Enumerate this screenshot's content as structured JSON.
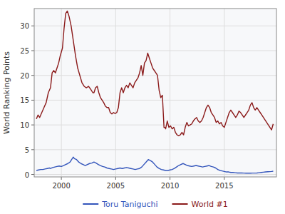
{
  "chart_data": {
    "type": "line",
    "ylabel": "World Ranking Points",
    "xlim": [
      1997.5,
      2019.8
    ],
    "ylim": [
      -0.5,
      33.5
    ],
    "xticks": [
      2000,
      2005,
      2010,
      2015
    ],
    "yticks": [
      0,
      5,
      10,
      15,
      20,
      25,
      30
    ],
    "grid": true,
    "legend": "bottom",
    "series": [
      {
        "name": "Toru Taniguchi",
        "color": "#3355bb",
        "x": [
          1997.7,
          1997.9,
          1998.1,
          1998.3,
          1998.5,
          1998.7,
          1998.9,
          1999.0,
          1999.2,
          1999.4,
          1999.6,
          1999.8,
          2000.0,
          2000.2,
          2000.4,
          2000.6,
          2000.8,
          2001.0,
          2001.1,
          2001.2,
          2001.4,
          2001.6,
          2001.8,
          2002.0,
          2002.2,
          2002.4,
          2002.6,
          2002.8,
          2003.0,
          2003.2,
          2003.4,
          2003.6,
          2003.8,
          2004.0,
          2004.2,
          2004.4,
          2004.6,
          2004.8,
          2005.0,
          2005.2,
          2005.4,
          2005.6,
          2005.8,
          2006.0,
          2006.2,
          2006.4,
          2006.6,
          2006.8,
          2007.0,
          2007.2,
          2007.4,
          2007.6,
          2007.8,
          2008.0,
          2008.2,
          2008.4,
          2008.6,
          2008.8,
          2009.0,
          2009.2,
          2009.4,
          2009.6,
          2009.8,
          2010.0,
          2010.2,
          2010.4,
          2010.6,
          2010.8,
          2011.0,
          2011.2,
          2011.4,
          2011.6,
          2011.8,
          2012.0,
          2012.2,
          2012.4,
          2012.6,
          2012.8,
          2013.0,
          2013.2,
          2013.4,
          2013.6,
          2013.8,
          2014.0,
          2014.2,
          2014.4,
          2014.6,
          2014.8,
          2015.0,
          2015.2,
          2015.4,
          2015.6,
          2015.8,
          2016.0,
          2016.2,
          2016.4,
          2016.6,
          2016.8,
          2017.0,
          2017.2,
          2017.4,
          2017.6,
          2017.8,
          2018.0,
          2018.2,
          2018.4,
          2018.6,
          2018.8,
          2019.0,
          2019.35,
          2019.5
        ],
        "values": [
          0.8,
          0.9,
          1.0,
          1.0,
          1.1,
          1.2,
          1.3,
          1.2,
          1.4,
          1.5,
          1.6,
          1.7,
          1.6,
          1.8,
          2.0,
          2.2,
          2.5,
          3.2,
          3.5,
          3.2,
          3.0,
          2.5,
          2.2,
          2.0,
          1.8,
          2.0,
          2.2,
          2.3,
          2.5,
          2.3,
          2.0,
          1.8,
          1.6,
          1.5,
          1.3,
          1.2,
          1.1,
          1.0,
          1.1,
          1.2,
          1.3,
          1.2,
          1.3,
          1.4,
          1.3,
          1.2,
          1.1,
          1.0,
          1.1,
          1.2,
          1.5,
          2.0,
          2.5,
          3.0,
          2.8,
          2.5,
          2.0,
          1.5,
          1.2,
          1.0,
          0.9,
          0.8,
          0.8,
          0.9,
          1.0,
          1.2,
          1.5,
          1.8,
          2.0,
          2.2,
          2.0,
          1.8,
          1.7,
          1.6,
          1.7,
          1.8,
          1.7,
          1.6,
          1.5,
          1.6,
          1.7,
          1.8,
          1.6,
          1.5,
          1.3,
          1.0,
          0.8,
          0.7,
          0.6,
          0.5,
          0.5,
          0.4,
          0.4,
          0.35,
          0.3,
          0.3,
          0.3,
          0.28,
          0.25,
          0.25,
          0.25,
          0.28,
          0.28,
          0.3,
          0.35,
          0.4,
          0.45,
          0.5,
          0.55,
          0.6,
          0.65
        ]
      },
      {
        "name": "World #1",
        "color": "#8b1a1a",
        "x": [
          1997.7,
          1997.85,
          1998.0,
          1998.2,
          1998.4,
          1998.6,
          1998.8,
          1999.0,
          1999.15,
          1999.3,
          1999.45,
          1999.6,
          1999.75,
          1999.9,
          2000.1,
          2000.25,
          2000.4,
          2000.55,
          2000.7,
          2000.9,
          2001.1,
          2001.3,
          2001.5,
          2001.7,
          2001.9,
          2002.1,
          2002.3,
          2002.5,
          2002.7,
          2002.9,
          2003.0,
          2003.15,
          2003.3,
          2003.45,
          2003.6,
          2003.75,
          2003.9,
          2004.05,
          2004.2,
          2004.35,
          2004.5,
          2004.65,
          2004.8,
          2004.95,
          2005.1,
          2005.25,
          2005.4,
          2005.55,
          2005.7,
          2005.85,
          2006.0,
          2006.15,
          2006.3,
          2006.45,
          2006.6,
          2006.75,
          2006.9,
          2007.05,
          2007.2,
          2007.35,
          2007.5,
          2007.65,
          2007.8,
          2007.95,
          2008.1,
          2008.25,
          2008.4,
          2008.55,
          2008.7,
          2008.85,
          2009.0,
          2009.15,
          2009.3,
          2009.45,
          2009.55,
          2009.6,
          2009.75,
          2009.9,
          2010.05,
          2010.2,
          2010.35,
          2010.5,
          2010.65,
          2010.8,
          2010.95,
          2011.1,
          2011.25,
          2011.4,
          2011.55,
          2011.7,
          2011.85,
          2012.0,
          2012.15,
          2012.3,
          2012.45,
          2012.6,
          2012.75,
          2012.9,
          2013.05,
          2013.2,
          2013.35,
          2013.5,
          2013.65,
          2013.8,
          2013.95,
          2014.1,
          2014.25,
          2014.4,
          2014.55,
          2014.7,
          2014.85,
          2015.0,
          2015.15,
          2015.3,
          2015.45,
          2015.6,
          2015.75,
          2015.9,
          2016.05,
          2016.2,
          2016.35,
          2016.5,
          2016.65,
          2016.8,
          2016.95,
          2017.1,
          2017.25,
          2017.4,
          2017.55,
          2017.7,
          2017.85,
          2018.0,
          2018.15,
          2018.3,
          2018.45,
          2018.6,
          2018.75,
          2018.9,
          2019.05,
          2019.2,
          2019.35,
          2019.5
        ],
        "values": [
          11.2,
          12.0,
          11.5,
          12.5,
          13.5,
          14.5,
          16.5,
          17.5,
          20.5,
          21.0,
          20.5,
          21.5,
          22.5,
          24.0,
          25.5,
          29.5,
          32.5,
          33.0,
          32.0,
          30.0,
          27.0,
          24.0,
          21.5,
          20.0,
          18.5,
          17.8,
          17.5,
          17.8,
          17.2,
          16.5,
          16.5,
          17.5,
          17.8,
          16.5,
          15.5,
          15.0,
          14.5,
          13.8,
          13.5,
          13.5,
          12.5,
          12.2,
          12.5,
          12.3,
          12.5,
          13.5,
          16.5,
          17.5,
          16.5,
          17.5,
          18.0,
          17.5,
          18.5,
          18.0,
          17.5,
          18.5,
          19.0,
          19.5,
          20.5,
          22.0,
          20.0,
          22.5,
          23.0,
          24.5,
          23.5,
          22.5,
          21.5,
          21.0,
          20.5,
          20.0,
          17.0,
          15.5,
          16.0,
          9.5,
          9.5,
          9.2,
          10.8,
          9.5,
          9.8,
          9.2,
          9.5,
          8.5,
          8.0,
          7.8,
          8.0,
          8.5,
          8.0,
          9.5,
          10.5,
          9.8,
          10.0,
          10.2,
          10.8,
          11.2,
          11.5,
          10.8,
          10.5,
          10.8,
          11.5,
          12.5,
          13.5,
          14.0,
          13.5,
          12.5,
          12.0,
          11.5,
          10.5,
          10.8,
          10.2,
          10.5,
          9.8,
          9.5,
          10.5,
          11.5,
          12.5,
          13.0,
          12.5,
          12.0,
          11.5,
          12.0,
          12.8,
          12.5,
          12.0,
          11.5,
          12.0,
          12.5,
          13.0,
          14.0,
          14.5,
          13.5,
          13.0,
          13.5,
          13.0,
          12.5,
          12.0,
          11.5,
          11.0,
          10.5,
          10.0,
          9.5,
          9.0,
          10.2
        ]
      }
    ]
  }
}
